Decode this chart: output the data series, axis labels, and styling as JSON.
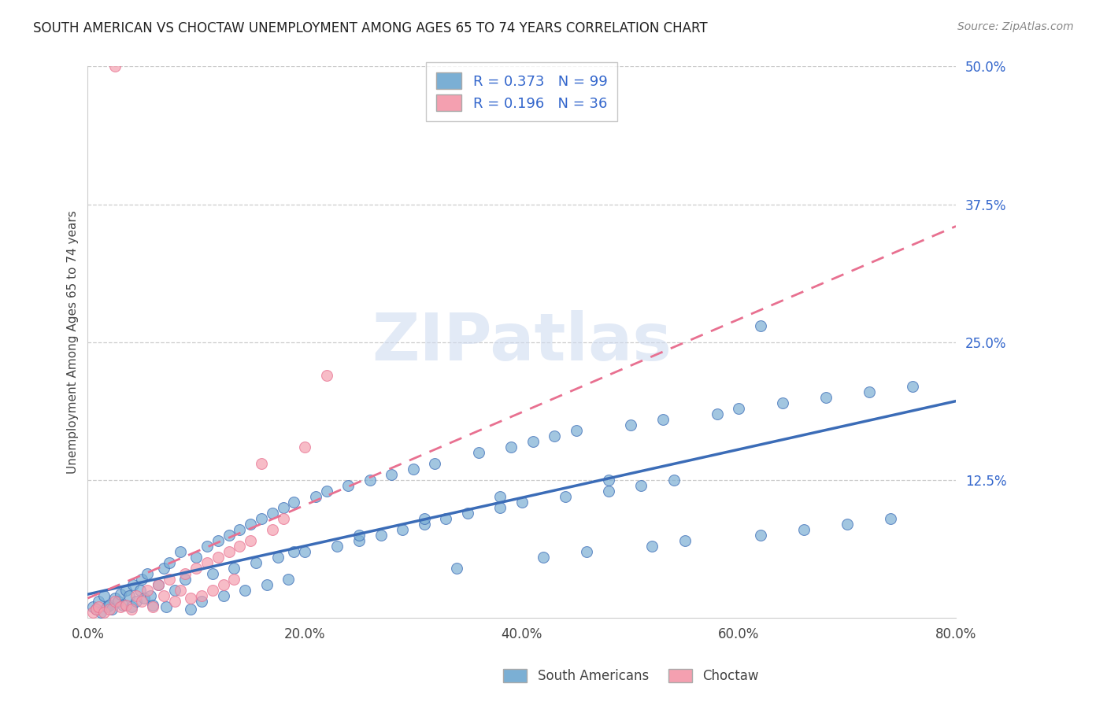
{
  "title": "SOUTH AMERICAN VS CHOCTAW UNEMPLOYMENT AMONG AGES 65 TO 74 YEARS CORRELATION CHART",
  "source": "Source: ZipAtlas.com",
  "ylabel": "Unemployment Among Ages 65 to 74 years",
  "xlim": [
    0.0,
    0.8
  ],
  "ylim": [
    0.0,
    0.5
  ],
  "xticks": [
    0.0,
    0.2,
    0.4,
    0.6,
    0.8
  ],
  "yticks": [
    0.0,
    0.125,
    0.25,
    0.375,
    0.5
  ],
  "ytick_labels": [
    "",
    "12.5%",
    "25.0%",
    "37.5%",
    "50.0%"
  ],
  "xtick_labels": [
    "0.0%",
    "20.0%",
    "40.0%",
    "60.0%",
    "80.0%"
  ],
  "blue_color": "#7BAFD4",
  "pink_color": "#F4A0B0",
  "trend_blue": "#3B6CB7",
  "trend_pink": "#E87090",
  "legend_R1": "R = 0.373",
  "legend_N1": "N = 99",
  "legend_R2": "R = 0.196",
  "legend_N2": "N = 36",
  "legend_label1": "South Americans",
  "legend_label2": "Choctaw",
  "blue_x": [
    0.005,
    0.008,
    0.01,
    0.012,
    0.015,
    0.018,
    0.02,
    0.022,
    0.025,
    0.028,
    0.03,
    0.032,
    0.035,
    0.038,
    0.04,
    0.042,
    0.045,
    0.048,
    0.05,
    0.052,
    0.055,
    0.058,
    0.06,
    0.065,
    0.07,
    0.072,
    0.075,
    0.08,
    0.085,
    0.09,
    0.095,
    0.1,
    0.105,
    0.11,
    0.115,
    0.12,
    0.125,
    0.13,
    0.135,
    0.14,
    0.145,
    0.15,
    0.155,
    0.16,
    0.165,
    0.17,
    0.175,
    0.18,
    0.185,
    0.19,
    0.2,
    0.21,
    0.22,
    0.23,
    0.24,
    0.25,
    0.26,
    0.27,
    0.28,
    0.29,
    0.3,
    0.31,
    0.32,
    0.33,
    0.34,
    0.35,
    0.36,
    0.38,
    0.39,
    0.4,
    0.41,
    0.42,
    0.43,
    0.44,
    0.45,
    0.46,
    0.48,
    0.5,
    0.51,
    0.52,
    0.53,
    0.54,
    0.55,
    0.58,
    0.6,
    0.62,
    0.64,
    0.66,
    0.68,
    0.7,
    0.72,
    0.74,
    0.76,
    0.62,
    0.48,
    0.38,
    0.31,
    0.25,
    0.19
  ],
  "blue_y": [
    0.01,
    0.008,
    0.015,
    0.005,
    0.02,
    0.01,
    0.012,
    0.008,
    0.018,
    0.015,
    0.022,
    0.012,
    0.025,
    0.02,
    0.01,
    0.03,
    0.015,
    0.025,
    0.035,
    0.018,
    0.04,
    0.02,
    0.012,
    0.03,
    0.045,
    0.01,
    0.05,
    0.025,
    0.06,
    0.035,
    0.008,
    0.055,
    0.015,
    0.065,
    0.04,
    0.07,
    0.02,
    0.075,
    0.045,
    0.08,
    0.025,
    0.085,
    0.05,
    0.09,
    0.03,
    0.095,
    0.055,
    0.1,
    0.035,
    0.105,
    0.06,
    0.11,
    0.115,
    0.065,
    0.12,
    0.07,
    0.125,
    0.075,
    0.13,
    0.08,
    0.135,
    0.085,
    0.14,
    0.09,
    0.045,
    0.095,
    0.15,
    0.1,
    0.155,
    0.105,
    0.16,
    0.055,
    0.165,
    0.11,
    0.17,
    0.06,
    0.115,
    0.175,
    0.12,
    0.065,
    0.18,
    0.125,
    0.07,
    0.185,
    0.19,
    0.075,
    0.195,
    0.08,
    0.2,
    0.085,
    0.205,
    0.09,
    0.21,
    0.265,
    0.125,
    0.11,
    0.09,
    0.075,
    0.06
  ],
  "pink_x": [
    0.005,
    0.008,
    0.025,
    0.01,
    0.015,
    0.02,
    0.025,
    0.03,
    0.035,
    0.04,
    0.045,
    0.05,
    0.055,
    0.06,
    0.065,
    0.07,
    0.075,
    0.08,
    0.085,
    0.09,
    0.095,
    0.1,
    0.105,
    0.11,
    0.115,
    0.12,
    0.125,
    0.13,
    0.135,
    0.14,
    0.15,
    0.16,
    0.17,
    0.18,
    0.2,
    0.22
  ],
  "pink_y": [
    0.005,
    0.008,
    0.5,
    0.01,
    0.005,
    0.008,
    0.015,
    0.01,
    0.012,
    0.008,
    0.02,
    0.015,
    0.025,
    0.01,
    0.03,
    0.02,
    0.035,
    0.015,
    0.025,
    0.04,
    0.018,
    0.045,
    0.02,
    0.05,
    0.025,
    0.055,
    0.03,
    0.06,
    0.035,
    0.065,
    0.07,
    0.14,
    0.08,
    0.09,
    0.155,
    0.22
  ]
}
